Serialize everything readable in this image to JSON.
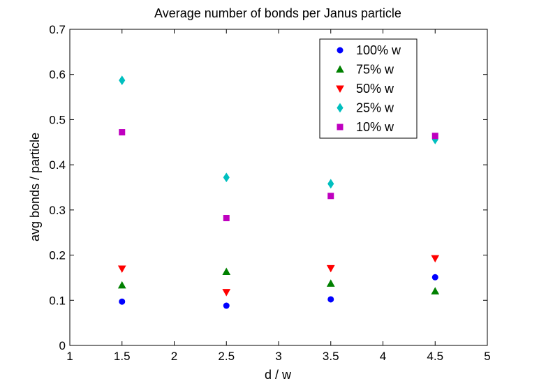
{
  "chart_data": {
    "type": "scatter",
    "title": "Average number of bonds per Janus particle",
    "xlabel": "d / w",
    "ylabel": "avg bonds / particle",
    "xlim": [
      1,
      5
    ],
    "ylim": [
      0,
      0.7
    ],
    "x_ticks": [
      1,
      1.5,
      2,
      2.5,
      3,
      3.5,
      4,
      4.5,
      5
    ],
    "x_tick_labels": [
      "1",
      "1.5",
      "2",
      "2.5",
      "3",
      "3.5",
      "4",
      "4.5",
      "5"
    ],
    "y_ticks": [
      0,
      0.1,
      0.2,
      0.3,
      0.4,
      0.5,
      0.6,
      0.7
    ],
    "y_tick_labels": [
      "0",
      "0.1",
      "0.2",
      "0.3",
      "0.4",
      "0.5",
      "0.6",
      "0.7"
    ],
    "grid": false,
    "legend_position": "top-right",
    "x": [
      1.5,
      2.5,
      3.5,
      4.5
    ],
    "series": [
      {
        "name": "100% w",
        "marker": "circle",
        "color": "#0000ff",
        "values": [
          0.097,
          0.088,
          0.102,
          0.151
        ]
      },
      {
        "name": "75% w",
        "marker": "triangle-up",
        "color": "#008000",
        "values": [
          0.133,
          0.163,
          0.137,
          0.12
        ]
      },
      {
        "name": "50% w",
        "marker": "triangle-down",
        "color": "#ff0000",
        "values": [
          0.17,
          0.118,
          0.171,
          0.193
        ]
      },
      {
        "name": "25% w",
        "marker": "diamond",
        "color": "#00bfbf",
        "values": [
          0.587,
          0.372,
          0.358,
          0.456
        ]
      },
      {
        "name": "10% w",
        "marker": "square",
        "color": "#bf00bf",
        "values": [
          0.472,
          0.282,
          0.331,
          0.464
        ]
      }
    ]
  }
}
